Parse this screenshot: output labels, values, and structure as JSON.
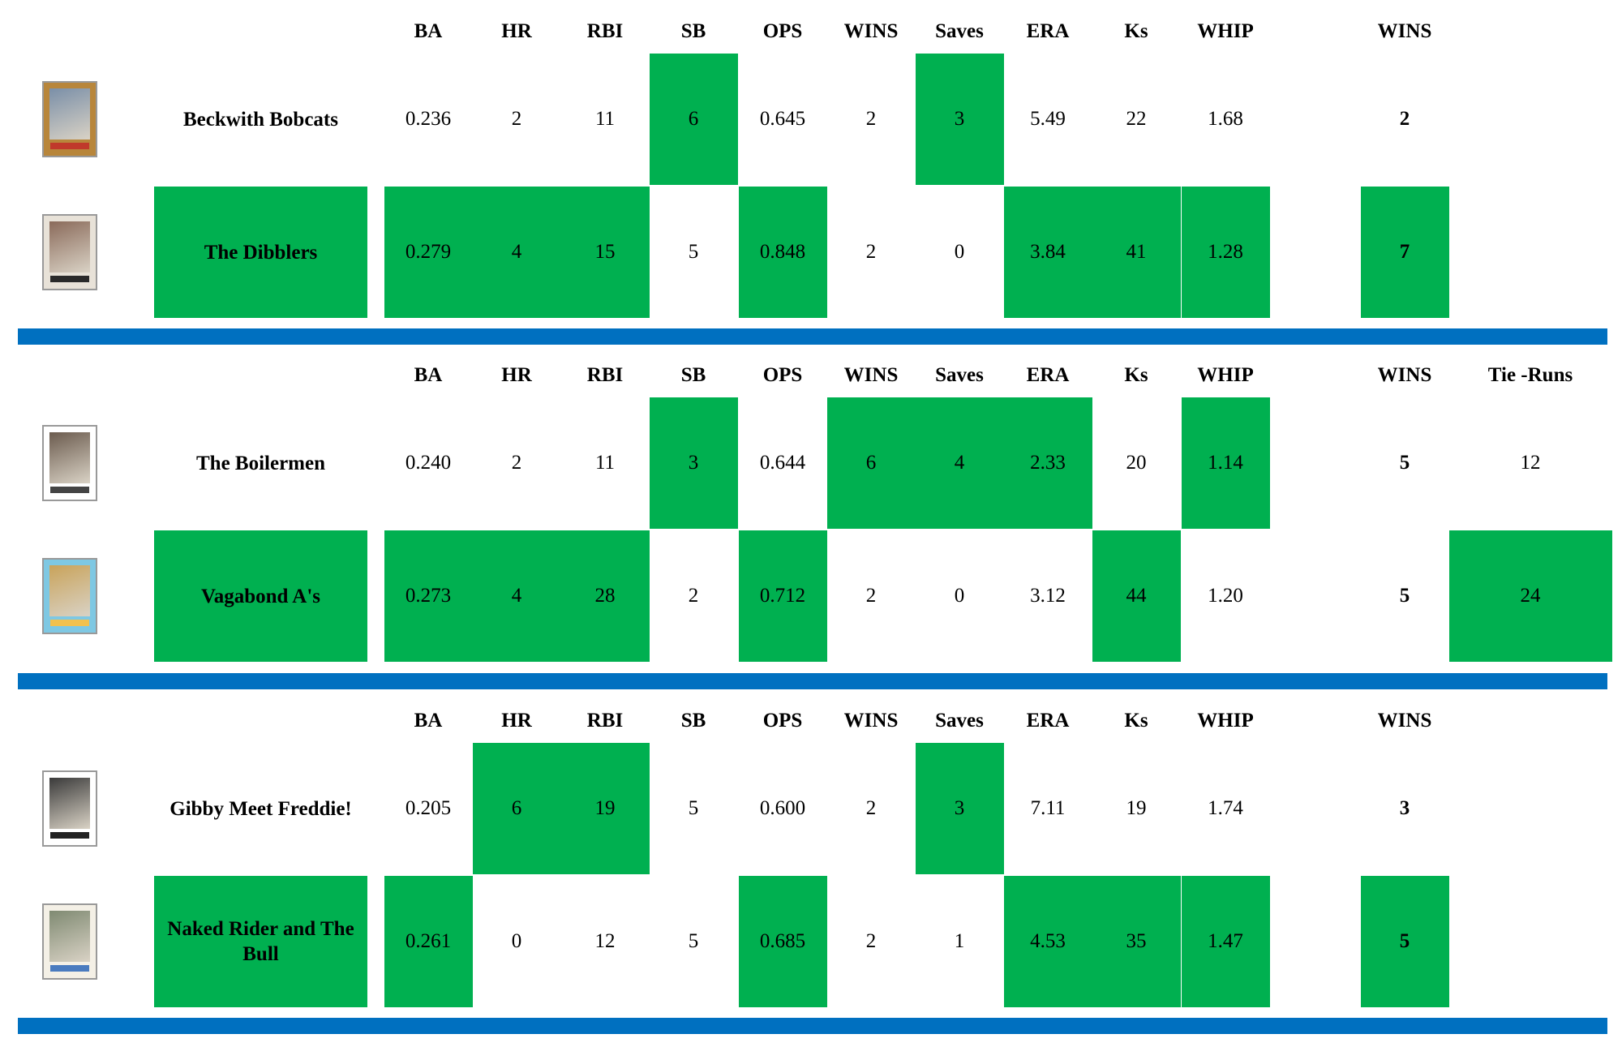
{
  "colors": {
    "winner": "#00b050",
    "divider": "#0070c0"
  },
  "headers": [
    "BA",
    "HR",
    "RBI",
    "SB",
    "OPS",
    "WINS",
    "Saves",
    "ERA",
    "Ks",
    "WHIP"
  ],
  "matchups": [
    {
      "wins_header": "WINS",
      "tie_header": "",
      "teams": [
        {
          "name": "Beckwith Bobcats",
          "team_winner": false,
          "card_icon": "baseball-card-pitcher-icon",
          "stats": [
            "0.236",
            "2",
            "11",
            "6",
            "0.645",
            "2",
            "3",
            "5.49",
            "22",
            "1.68"
          ],
          "winners": [
            false,
            false,
            false,
            true,
            false,
            false,
            true,
            false,
            false,
            false
          ],
          "wins": "2",
          "wins_winner": false,
          "tie": "",
          "tie_winner": false
        },
        {
          "name": "The Dibblers",
          "team_winner": true,
          "card_icon": "baseball-card-batter-icon",
          "stats": [
            "0.279",
            "4",
            "15",
            "5",
            "0.848",
            "2",
            "0",
            "3.84",
            "41",
            "1.28"
          ],
          "winners": [
            true,
            true,
            true,
            false,
            true,
            false,
            false,
            true,
            true,
            true
          ],
          "wins": "7",
          "wins_winner": true,
          "tie": "",
          "tie_winner": false
        }
      ]
    },
    {
      "wins_header": "WINS",
      "tie_header": "Tie -Runs",
      "teams": [
        {
          "name": "The Boilermen",
          "team_winner": false,
          "card_icon": "baseball-card-player-icon",
          "stats": [
            "0.240",
            "2",
            "11",
            "3",
            "0.644",
            "6",
            "4",
            "2.33",
            "20",
            "1.14"
          ],
          "winners": [
            false,
            false,
            false,
            true,
            false,
            true,
            true,
            true,
            false,
            true
          ],
          "wins": "5",
          "wins_winner": false,
          "tie": "12",
          "tie_winner": false
        },
        {
          "name": "Vagabond A's",
          "team_winner": true,
          "card_icon": "baseball-card-athletics-icon",
          "stats": [
            "0.273",
            "4",
            "28",
            "2",
            "0.712",
            "2",
            "0",
            "3.12",
            "44",
            "1.20"
          ],
          "winners": [
            true,
            true,
            true,
            false,
            true,
            false,
            false,
            false,
            true,
            false
          ],
          "wins": "5",
          "wins_winner": false,
          "tie": "24",
          "tie_winner": true
        }
      ]
    },
    {
      "wins_header": "WINS",
      "tie_header": "",
      "teams": [
        {
          "name": "Gibby Meet Freddie!",
          "team_winner": false,
          "card_icon": "baseball-card-fielder-icon",
          "stats": [
            "0.205",
            "6",
            "19",
            "5",
            "0.600",
            "2",
            "3",
            "7.11",
            "19",
            "1.74"
          ],
          "winners": [
            false,
            true,
            true,
            false,
            false,
            false,
            true,
            false,
            false,
            false
          ],
          "wins": "3",
          "wins_winner": false,
          "tie": "",
          "tie_winner": false
        },
        {
          "name": "Naked Rider and The Bull",
          "team_winner": true,
          "card_icon": "baseball-card-hitter-icon",
          "stats": [
            "0.261",
            "0",
            "12",
            "5",
            "0.685",
            "2",
            "1",
            "4.53",
            "35",
            "1.47"
          ],
          "winners": [
            true,
            false,
            false,
            false,
            true,
            false,
            false,
            true,
            true,
            true
          ],
          "wins": "5",
          "wins_winner": true,
          "tie": "",
          "tie_winner": false
        }
      ]
    }
  ]
}
